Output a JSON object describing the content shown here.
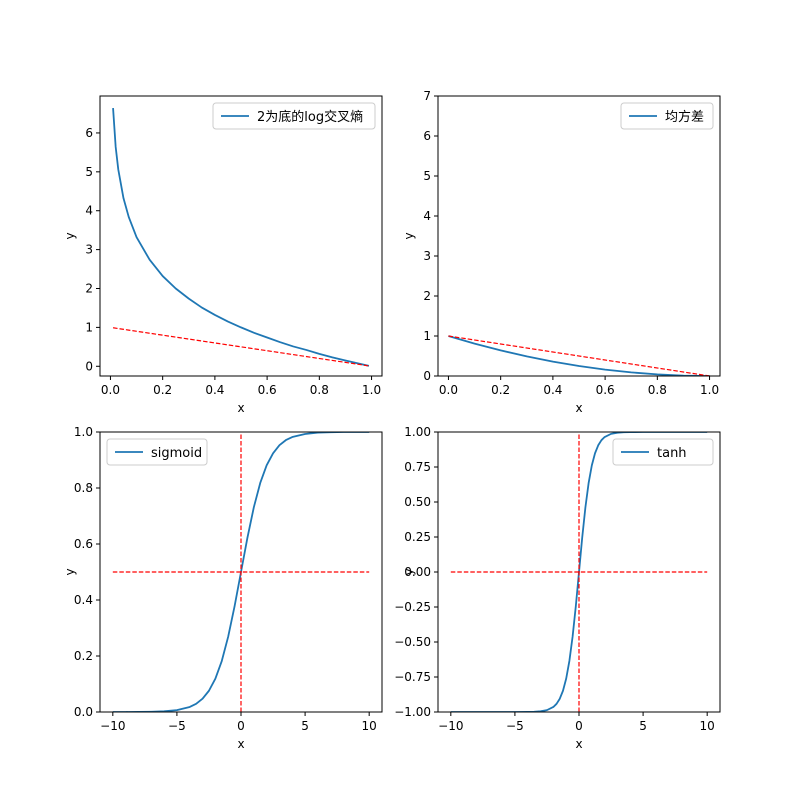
{
  "colors": {
    "curve": "#1f77b4",
    "reference": "#ff0000",
    "axes": "#000000",
    "legend_border": "#cccccc"
  },
  "chart_data": [
    {
      "type": "line",
      "id": "log-cross-entropy",
      "xlabel": "x",
      "ylabel": "y",
      "xlim": [
        -0.04,
        1.04
      ],
      "ylim": [
        -0.25,
        6.95
      ],
      "xticks": [
        0,
        0.2,
        0.4,
        0.6,
        0.8,
        1.0
      ],
      "xtick_labels": [
        "0.0",
        "0.2",
        "0.4",
        "0.6",
        "0.8",
        "1.0"
      ],
      "yticks": [
        0,
        1,
        2,
        3,
        4,
        5,
        6
      ],
      "ytick_labels": [
        "0",
        "1",
        "2",
        "3",
        "4",
        "5",
        "6"
      ],
      "legend": {
        "label": "2为底的log交叉熵",
        "location": "upper right"
      },
      "series": [
        {
          "name": "2为底的log交叉熵",
          "style": "solid",
          "x": [
            0.01,
            0.02,
            0.03,
            0.05,
            0.07,
            0.1,
            0.15,
            0.2,
            0.25,
            0.3,
            0.35,
            0.4,
            0.45,
            0.5,
            0.55,
            0.6,
            0.65,
            0.7,
            0.75,
            0.8,
            0.85,
            0.9,
            0.95,
            0.99
          ],
          "y": [
            6.64,
            5.64,
            5.06,
            4.32,
            3.84,
            3.32,
            2.74,
            2.32,
            2.0,
            1.74,
            1.51,
            1.32,
            1.15,
            1.0,
            0.86,
            0.74,
            0.62,
            0.51,
            0.42,
            0.32,
            0.23,
            0.15,
            0.07,
            0.01
          ]
        },
        {
          "name": "reference",
          "style": "dashed",
          "x": [
            0.01,
            0.99
          ],
          "y": [
            0.99,
            0.01
          ]
        }
      ]
    },
    {
      "type": "line",
      "id": "mean-squared-error",
      "xlabel": "x",
      "ylabel": "y",
      "xlim": [
        -0.04,
        1.04
      ],
      "ylim": [
        0,
        7
      ],
      "xticks": [
        0,
        0.2,
        0.4,
        0.6,
        0.8,
        1.0
      ],
      "xtick_labels": [
        "0.0",
        "0.2",
        "0.4",
        "0.6",
        "0.8",
        "1.0"
      ],
      "yticks": [
        0,
        1,
        2,
        3,
        4,
        5,
        6,
        7
      ],
      "ytick_labels": [
        "0",
        "1",
        "2",
        "3",
        "4",
        "5",
        "6",
        "7"
      ],
      "legend": {
        "label": "均方差",
        "location": "upper right"
      },
      "series": [
        {
          "name": "均方差",
          "style": "solid",
          "x": [
            0.0,
            0.1,
            0.2,
            0.3,
            0.4,
            0.5,
            0.6,
            0.7,
            0.8,
            0.9,
            1.0
          ],
          "y": [
            1.0,
            0.81,
            0.64,
            0.49,
            0.36,
            0.25,
            0.16,
            0.09,
            0.04,
            0.01,
            0.0
          ]
        },
        {
          "name": "reference",
          "style": "dashed",
          "x": [
            0.0,
            1.0
          ],
          "y": [
            1.0,
            0.0
          ]
        }
      ]
    },
    {
      "type": "line",
      "id": "sigmoid",
      "xlabel": "x",
      "ylabel": "y",
      "xlim": [
        -11,
        11
      ],
      "ylim": [
        0,
        1
      ],
      "xticks": [
        -10,
        -5,
        0,
        5,
        10
      ],
      "xtick_labels": [
        "−10",
        "−5",
        "0",
        "5",
        "10"
      ],
      "yticks": [
        0,
        0.2,
        0.4,
        0.6,
        0.8,
        1.0
      ],
      "ytick_labels": [
        "0.0",
        "0.2",
        "0.4",
        "0.6",
        "0.8",
        "1.0"
      ],
      "legend": {
        "label": "sigmoid",
        "location": "upper left"
      },
      "series": [
        {
          "name": "sigmoid",
          "style": "solid",
          "x": [
            -10,
            -9,
            -8,
            -7,
            -6,
            -5,
            -4,
            -3.5,
            -3,
            -2.5,
            -2,
            -1.5,
            -1,
            -0.5,
            0,
            0.5,
            1,
            1.5,
            2,
            2.5,
            3,
            3.5,
            4,
            5,
            6,
            7,
            8,
            9,
            10
          ],
          "y": [
            4.54e-05,
            0.000123,
            0.000335,
            0.000911,
            0.00247,
            0.00669,
            0.018,
            0.0293,
            0.0474,
            0.0759,
            0.119,
            0.182,
            0.269,
            0.378,
            0.5,
            0.622,
            0.731,
            0.818,
            0.881,
            0.924,
            0.953,
            0.971,
            0.982,
            0.993,
            0.998,
            0.999,
            1.0,
            1.0,
            1.0
          ]
        },
        {
          "name": "reference-h",
          "style": "dashed",
          "x": [
            -10,
            10
          ],
          "y": [
            0.5,
            0.5
          ]
        },
        {
          "name": "reference-v",
          "style": "dashed",
          "x": [
            0,
            0
          ],
          "y": [
            0,
            1
          ]
        }
      ]
    },
    {
      "type": "line",
      "id": "tanh",
      "xlabel": "x",
      "ylabel": "y",
      "xlim": [
        -11,
        11
      ],
      "ylim": [
        -1,
        1
      ],
      "xticks": [
        -10,
        -5,
        0,
        5,
        10
      ],
      "xtick_labels": [
        "−10",
        "−5",
        "0",
        "5",
        "10"
      ],
      "yticks": [
        -1,
        -0.75,
        -0.5,
        -0.25,
        0,
        0.25,
        0.5,
        0.75,
        1.0
      ],
      "ytick_labels": [
        "−1.00",
        "−0.75",
        "−0.50",
        "−0.25",
        "0.00",
        "0.25",
        "0.50",
        "0.75",
        "1.00"
      ],
      "legend": {
        "label": "tanh",
        "location": "upper right"
      },
      "series": [
        {
          "name": "tanh",
          "style": "solid",
          "x": [
            -10,
            -5,
            -4,
            -3.5,
            -3,
            -2.5,
            -2,
            -1.75,
            -1.5,
            -1.25,
            -1,
            -0.75,
            -0.5,
            -0.25,
            0,
            0.25,
            0.5,
            0.75,
            1,
            1.25,
            1.5,
            1.75,
            2,
            2.5,
            3,
            3.5,
            4,
            5,
            10
          ],
          "y": [
            -1.0,
            -0.9999,
            -0.9993,
            -0.9982,
            -0.9951,
            -0.9866,
            -0.964,
            -0.9414,
            -0.9051,
            -0.8483,
            -0.7616,
            -0.6351,
            -0.4621,
            -0.2449,
            0.0,
            0.2449,
            0.4621,
            0.6351,
            0.7616,
            0.8483,
            0.9051,
            0.9414,
            0.964,
            0.9866,
            0.9951,
            0.9982,
            0.9993,
            0.9999,
            1.0
          ]
        },
        {
          "name": "reference-h",
          "style": "dashed",
          "x": [
            -10,
            10
          ],
          "y": [
            0,
            0
          ]
        },
        {
          "name": "reference-v",
          "style": "dashed",
          "x": [
            0,
            0
          ],
          "y": [
            -1,
            1
          ]
        }
      ]
    }
  ]
}
